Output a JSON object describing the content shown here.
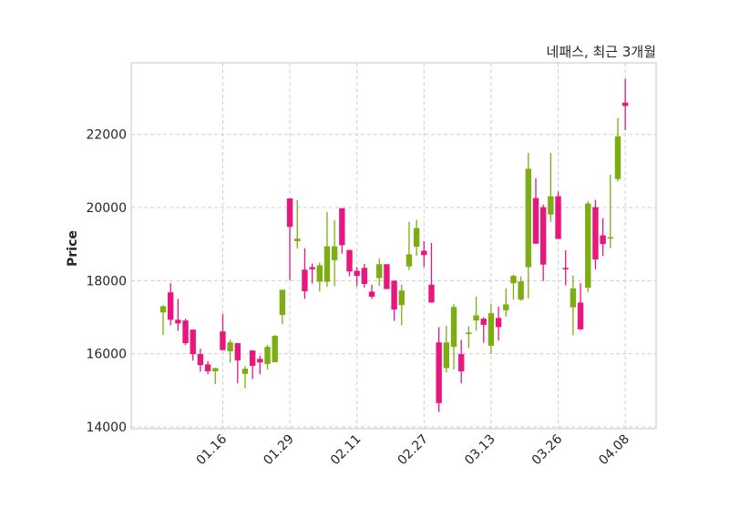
{
  "chart_data": {
    "type": "candlestick",
    "title": "네패스, 최근 3개월",
    "xlabel": "",
    "ylabel": "Price",
    "ylim": [
      13950,
      23960
    ],
    "yticks": [
      14000,
      16000,
      18000,
      20000,
      22000
    ],
    "xticks": [
      {
        "index": 8,
        "label": "01.16"
      },
      {
        "index": 17,
        "label": "01.29"
      },
      {
        "index": 26,
        "label": "02.11"
      },
      {
        "index": 35,
        "label": "02.27"
      },
      {
        "index": 44,
        "label": "03.13"
      },
      {
        "index": 53,
        "label": "03.26"
      },
      {
        "index": 62,
        "label": "04.08"
      }
    ],
    "grid": true,
    "up_color": "#7cad12",
    "down_color": "#e8177f",
    "ohlc": [
      [
        17130,
        17330,
        16510,
        17300
      ],
      [
        17680,
        17930,
        16780,
        16930
      ],
      [
        16930,
        17500,
        16630,
        16830
      ],
      [
        16910,
        16960,
        16240,
        16290
      ],
      [
        16660,
        16660,
        15810,
        15990
      ],
      [
        15990,
        16140,
        15510,
        15690
      ],
      [
        15710,
        15800,
        15440,
        15520
      ],
      [
        15520,
        15610,
        15170,
        15610
      ],
      [
        16610,
        17080,
        16100,
        16100
      ],
      [
        16070,
        16390,
        15760,
        16310
      ],
      [
        16290,
        16290,
        15190,
        15820
      ],
      [
        15450,
        15660,
        15050,
        15590
      ],
      [
        16090,
        16090,
        15310,
        15670
      ],
      [
        15860,
        15950,
        15440,
        15760
      ],
      [
        15720,
        16240,
        15570,
        16190
      ],
      [
        15770,
        16510,
        15770,
        16490
      ],
      [
        17060,
        17750,
        16810,
        17750
      ],
      [
        20250,
        20250,
        18020,
        19470
      ],
      [
        19080,
        20200,
        18880,
        19150
      ],
      [
        18300,
        18890,
        17500,
        17710
      ],
      [
        18370,
        18470,
        17920,
        18310
      ],
      [
        17970,
        18490,
        17700,
        18420
      ],
      [
        17970,
        19880,
        17830,
        18940
      ],
      [
        18560,
        19650,
        17850,
        18940
      ],
      [
        19980,
        19980,
        18740,
        18970
      ],
      [
        18840,
        18840,
        18120,
        18250
      ],
      [
        18270,
        18370,
        17850,
        18130
      ],
      [
        18350,
        18460,
        17810,
        17910
      ],
      [
        17700,
        17890,
        17500,
        17560
      ],
      [
        18070,
        18610,
        17850,
        18450
      ],
      [
        18450,
        18450,
        17770,
        17770
      ],
      [
        18000,
        18000,
        16900,
        17210
      ],
      [
        17330,
        17890,
        16780,
        17730
      ],
      [
        18390,
        19610,
        18290,
        18720
      ],
      [
        18930,
        19660,
        18680,
        19440
      ],
      [
        18820,
        19080,
        18370,
        18700
      ],
      [
        17890,
        19030,
        17400,
        17400
      ],
      [
        16310,
        16730,
        14410,
        14650
      ],
      [
        15610,
        16770,
        15490,
        16310
      ],
      [
        16190,
        17360,
        15570,
        17280
      ],
      [
        15990,
        16380,
        15190,
        15520
      ],
      [
        16540,
        16750,
        16150,
        16580
      ],
      [
        16910,
        17560,
        16630,
        17050
      ],
      [
        16960,
        17000,
        16300,
        16790
      ],
      [
        16220,
        17370,
        16000,
        17110
      ],
      [
        16980,
        17290,
        16360,
        16730
      ],
      [
        17190,
        17790,
        17020,
        17350
      ],
      [
        17930,
        18170,
        17480,
        18130
      ],
      [
        17480,
        18120,
        17450,
        17980
      ],
      [
        18370,
        21500,
        17520,
        21060
      ],
      [
        20260,
        20800,
        19010,
        19010
      ],
      [
        20010,
        20080,
        17990,
        18440
      ],
      [
        19810,
        21500,
        19610,
        20310
      ],
      [
        20310,
        20440,
        19140,
        19140
      ],
      [
        18350,
        18830,
        17870,
        18310
      ],
      [
        17270,
        18140,
        16500,
        17790
      ],
      [
        17400,
        17930,
        16650,
        16670
      ],
      [
        17810,
        20170,
        17690,
        20110
      ],
      [
        20010,
        20210,
        18310,
        18580
      ],
      [
        19240,
        19710,
        18680,
        19000
      ],
      [
        19170,
        20900,
        18890,
        19190
      ],
      [
        20780,
        22450,
        20710,
        21950
      ],
      [
        22870,
        23520,
        22120,
        22780
      ]
    ]
  }
}
